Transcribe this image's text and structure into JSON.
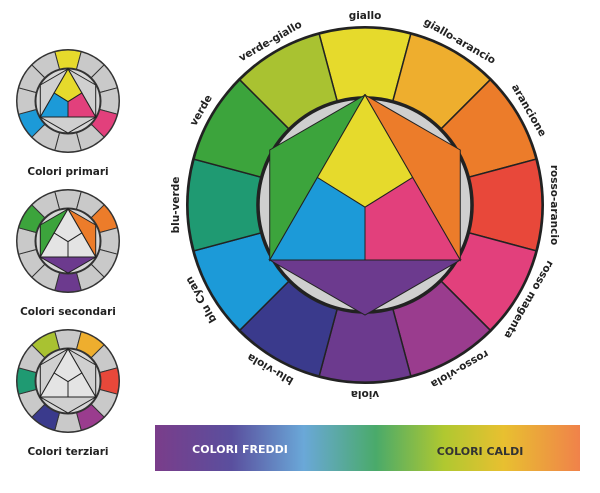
{
  "wheel_labels": [
    "giallo",
    "giallo-arancio",
    "arancione",
    "rosso-arancio",
    "rosso magenta",
    "rosso-viola",
    "viola",
    "blu-viola",
    "blu Cyan",
    "blu-verde",
    "verde",
    "verde-giallo"
  ],
  "small_wheels": [
    {
      "caption": "Colori primari"
    },
    {
      "caption": "Colori secondari"
    },
    {
      "caption": "Colori terziari"
    }
  ],
  "gradient_bar": {
    "left_label": "COLORI FREDDI",
    "right_label": "COLORI CALDI"
  }
}
